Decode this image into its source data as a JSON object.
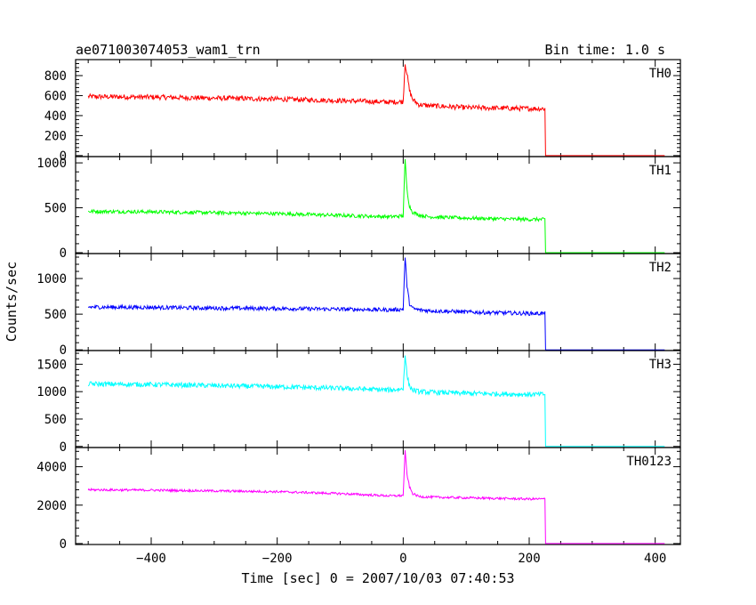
{
  "chart_data": {
    "type": "line",
    "title": "ae071003074053_wam1_trn",
    "subtitle": "Bin time: 1.0 s",
    "xlabel": "Time [sec] 0 = 2007/10/03 07:40:53",
    "ylabel": "Counts/sec",
    "xlim": [
      -520,
      440
    ],
    "x_ticks": [
      -400,
      -200,
      0,
      200,
      400
    ],
    "grid": false,
    "panels": [
      {
        "name": "TH0",
        "color": "#ff0000",
        "ylim": [
          -10,
          960
        ],
        "y_ticks": [
          0,
          200,
          400,
          600,
          800
        ],
        "x": [
          -500,
          -400,
          -300,
          -200,
          -100,
          -20,
          0,
          3,
          6,
          10,
          15,
          25,
          40,
          100,
          200,
          225,
          226,
          415
        ],
        "y": [
          590,
          585,
          575,
          565,
          550,
          535,
          540,
          920,
          820,
          650,
          560,
          510,
          500,
          480,
          470,
          470,
          0,
          0
        ],
        "noise": 25
      },
      {
        "name": "TH1",
        "color": "#00ff00",
        "ylim": [
          -10,
          1070
        ],
        "y_ticks": [
          0,
          500,
          1000
        ],
        "x": [
          -500,
          -400,
          -300,
          -200,
          -100,
          -20,
          0,
          3,
          6,
          10,
          15,
          25,
          40,
          100,
          200,
          225,
          226,
          415
        ],
        "y": [
          460,
          455,
          445,
          435,
          415,
          400,
          410,
          1030,
          700,
          520,
          450,
          420,
          400,
          385,
          370,
          370,
          0,
          0
        ],
        "noise": 20
      },
      {
        "name": "TH2",
        "color": "#0000ff",
        "ylim": [
          -10,
          1350
        ],
        "y_ticks": [
          0,
          500,
          1000
        ],
        "x": [
          -500,
          -400,
          -300,
          -200,
          -100,
          -20,
          0,
          3,
          6,
          10,
          15,
          25,
          40,
          100,
          200,
          225,
          226,
          415
        ],
        "y": [
          600,
          595,
          585,
          580,
          570,
          560,
          570,
          1300,
          900,
          650,
          580,
          560,
          550,
          530,
          510,
          510,
          0,
          0
        ],
        "noise": 28
      },
      {
        "name": "TH3",
        "color": "#00ffff",
        "ylim": [
          -20,
          1750
        ],
        "y_ticks": [
          0,
          500,
          1000,
          1500
        ],
        "x": [
          -500,
          -400,
          -300,
          -200,
          -100,
          -20,
          0,
          3,
          6,
          10,
          15,
          25,
          40,
          100,
          200,
          225,
          226,
          415
        ],
        "y": [
          1140,
          1130,
          1110,
          1090,
          1060,
          1030,
          1050,
          1680,
          1300,
          1100,
          1030,
          1000,
          990,
          970,
          950,
          950,
          0,
          0
        ],
        "noise": 45
      },
      {
        "name": "TH0123",
        "color": "#ff00ff",
        "ylim": [
          -50,
          5000
        ],
        "y_ticks": [
          0,
          2000,
          4000
        ],
        "x": [
          -500,
          -400,
          -300,
          -200,
          -100,
          -20,
          0,
          3,
          6,
          10,
          15,
          25,
          40,
          100,
          200,
          225,
          226,
          415
        ],
        "y": [
          2800,
          2780,
          2740,
          2700,
          2600,
          2480,
          2500,
          4800,
          3600,
          2950,
          2600,
          2450,
          2420,
          2380,
          2320,
          2320,
          0,
          0
        ],
        "noise": 60
      }
    ]
  }
}
